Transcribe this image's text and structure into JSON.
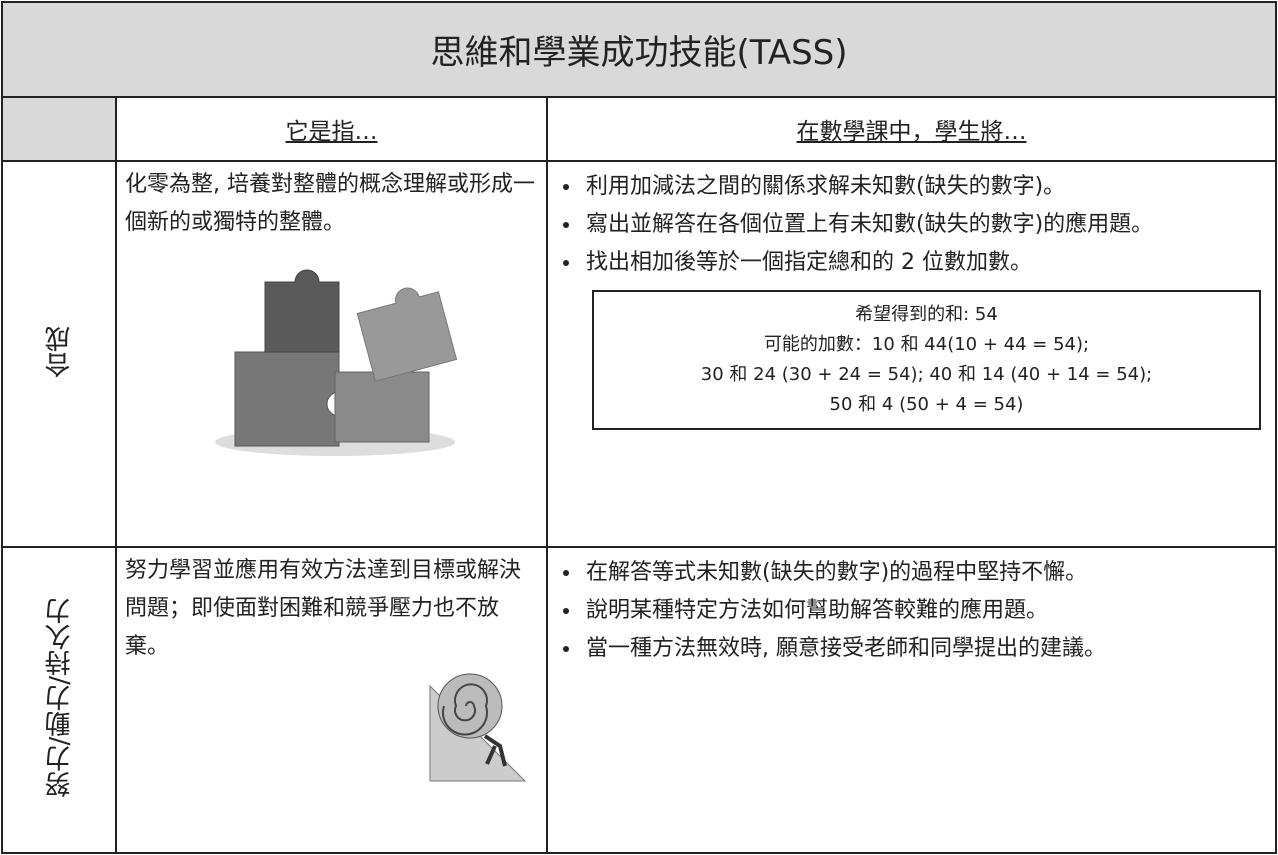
{
  "header": {
    "title": "思維和學業成功技能(TASS)"
  },
  "table": {
    "columns": [
      "它是指…",
      "在數學課中，學生將…"
    ],
    "rows": [
      {
        "label": "合成",
        "description": "化零為整, 培養對整體的概念理解或形成一個新的或獨特的整體。",
        "bullets": [
          "利用加減法之間的關係求解未知數(缺失的數字)。",
          "寫出並解答在各個位置上有未知數(缺失的數字)的應用題。",
          "找出相加後等於一個指定總和的 2 位數加數。"
        ],
        "example": [
          "希望得到的和: 54",
          "可能的加數：10 和 44(10 + 44 = 54);",
          "30 和 24 (30 + 24 = 54); 40 和 14 (40 + 14 = 54);",
          "50 和 4 (50 + 4 = 54)"
        ]
      },
      {
        "label": "努力/動力/持久力",
        "description": "努力學習並應用有效方法達到目標或解決問題；即使面對困難和競爭壓力也不放棄。",
        "bullets": [
          "在解答等式未知數(缺失的數字)的過程中堅持不懈。",
          "說明某種特定方法如何幫助解答較難的應用題。",
          "當一種方法無效時, 願意接受老師和同學提出的建議。"
        ]
      }
    ]
  }
}
